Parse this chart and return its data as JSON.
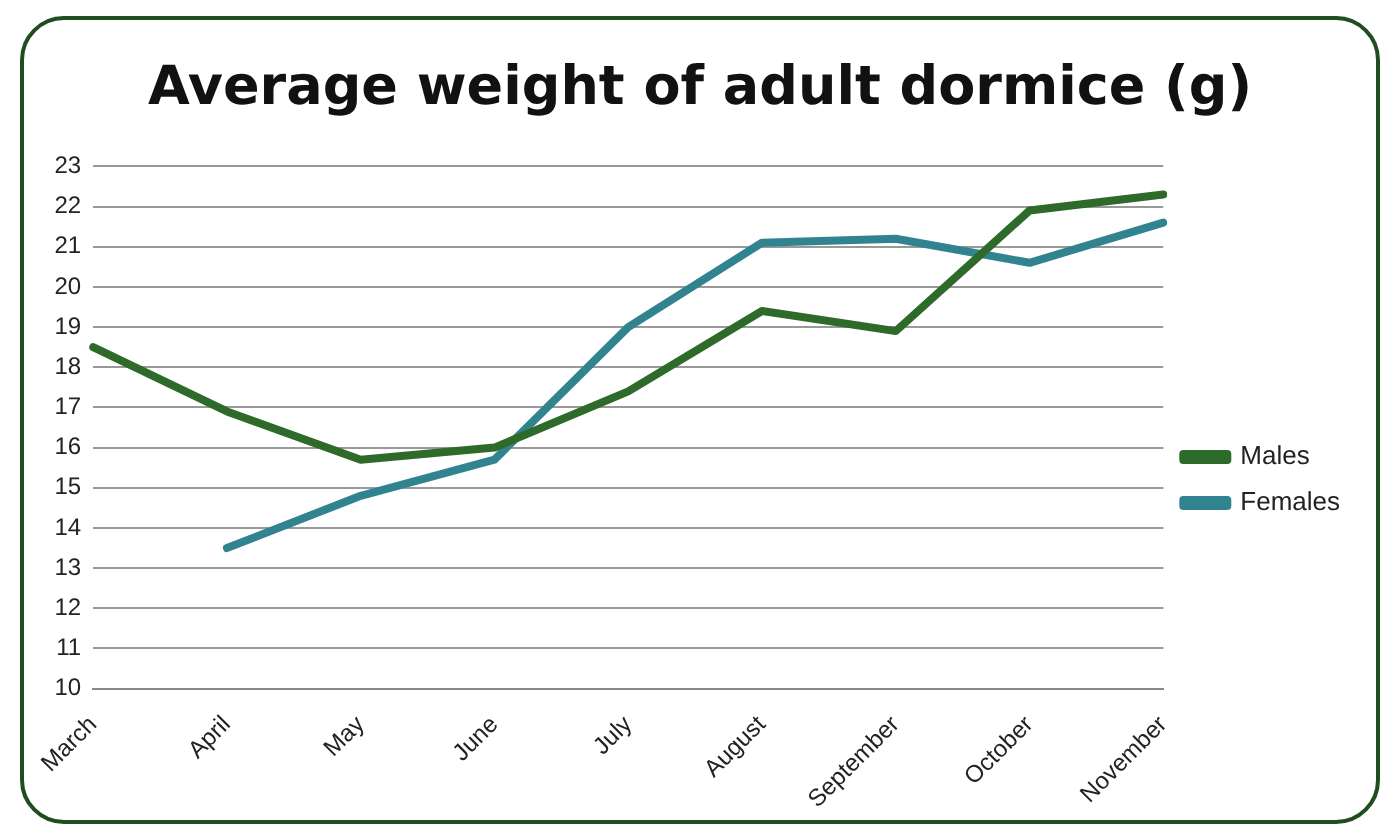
{
  "chart_data": {
    "type": "line",
    "title": "Average weight of adult dormice (g)",
    "categories": [
      "March",
      "April",
      "May",
      "June",
      "July",
      "August",
      "September",
      "October",
      "November"
    ],
    "series": [
      {
        "name": "Males",
        "color": "#2e6b2a",
        "values": [
          18.5,
          16.9,
          15.7,
          16.0,
          17.4,
          19.4,
          18.9,
          21.9,
          22.3
        ]
      },
      {
        "name": "Females",
        "color": "#31848f",
        "values": [
          null,
          13.5,
          14.8,
          15.7,
          19.0,
          21.1,
          21.2,
          20.6,
          21.6
        ]
      }
    ],
    "ylim": [
      10,
      23
    ],
    "yticks": [
      10,
      11,
      12,
      13,
      14,
      15,
      16,
      17,
      18,
      19,
      20,
      21,
      22,
      23
    ],
    "grid": "y",
    "legend": "right",
    "marker": "none",
    "line_style": "solid"
  }
}
